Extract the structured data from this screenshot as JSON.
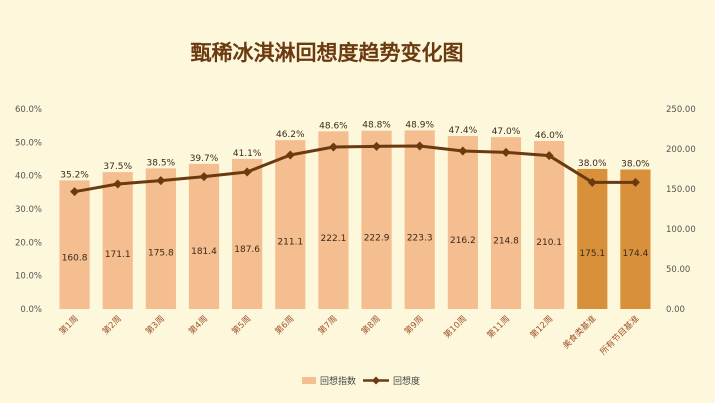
{
  "chart_data": {
    "type": "bar+line",
    "title": "甄稀冰淇淋回想度趋势变化图",
    "categories": [
      "第1周",
      "第2周",
      "第3周",
      "第4周",
      "第5周",
      "第6周",
      "第7周",
      "第8周",
      "第9周",
      "第10周",
      "第11周",
      "第12周",
      "美食类基准",
      "所有节目基准"
    ],
    "series": [
      {
        "name": "回想指数",
        "type": "bar",
        "axis": "right",
        "values": [
          160.8,
          171.1,
          175.8,
          181.4,
          187.6,
          211.1,
          222.1,
          222.9,
          223.3,
          216.2,
          214.8,
          210.1,
          175.1,
          174.4
        ],
        "value_labels": [
          "160.8",
          "171.1",
          "175.8",
          "181.4",
          "187.6",
          "211.1",
          "222.1",
          "222.9",
          "223.3",
          "216.2",
          "214.8",
          "210.1",
          "175.1",
          "174.4"
        ]
      },
      {
        "name": "回想度",
        "type": "line",
        "axis": "left",
        "values": [
          35.2,
          37.5,
          38.5,
          39.7,
          41.1,
          46.2,
          48.6,
          48.8,
          48.9,
          47.4,
          47.0,
          46.0,
          38.0,
          38.0
        ],
        "value_labels": [
          "35.2%",
          "37.5%",
          "38.5%",
          "39.7%",
          "41.1%",
          "46.2%",
          "48.6%",
          "48.8%",
          "48.9%",
          "47.4%",
          "47.0%",
          "46.0%",
          "38.0%",
          "38.0%"
        ]
      }
    ],
    "y_left": {
      "min": 0,
      "max": 60,
      "ticks": [
        "0.0%",
        "10.0%",
        "20.0%",
        "30.0%",
        "40.0%",
        "50.0%",
        "60.0%"
      ]
    },
    "y_right": {
      "min": 0,
      "max": 250,
      "ticks": [
        "0.00",
        "50.00",
        "100.00",
        "150.00",
        "200.00",
        "250.00"
      ]
    },
    "legend_position": "bottom-right",
    "colors": {
      "bar": "#f5be90",
      "bar_highlight": "#d8913a",
      "line": "#6b3a10",
      "title": "#6b3a10"
    },
    "highlight_categories": [
      "美食类基准",
      "所有节目基准"
    ]
  }
}
